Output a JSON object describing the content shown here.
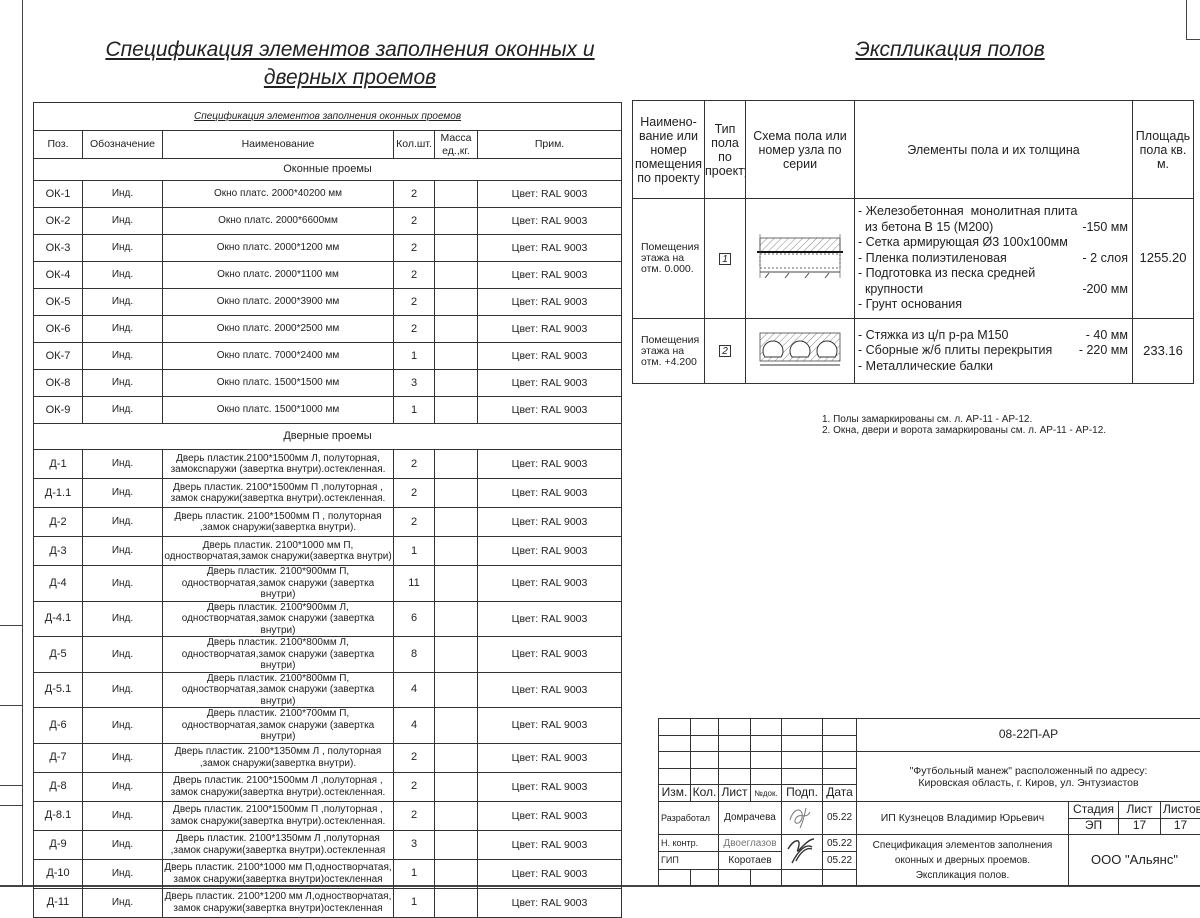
{
  "left_title": [
    "Спецификация элементов заполнения оконных и",
    "дверных проемов"
  ],
  "right_title": "Экспликация полов",
  "spec_table": {
    "caption": "Спецификация элементов заполнения оконных проемов",
    "headers": [
      "Поз.",
      "Обозначение",
      "Наименование",
      "Кол.шт.",
      "Масса ед.,кг.",
      "Прим."
    ],
    "window_section": "Оконные проемы",
    "windows": [
      [
        "ОК-1",
        "Инд.",
        "Окно платс. 2000*40200 мм",
        "2",
        "",
        "Цвет: RAL 9003"
      ],
      [
        "ОК-2",
        "Инд.",
        "Окно платс. 2000*6600мм",
        "2",
        "",
        "Цвет: RAL 9003"
      ],
      [
        "ОК-3",
        "Инд.",
        "Окно платс. 2000*1200 мм",
        "2",
        "",
        "Цвет: RAL 9003"
      ],
      [
        "ОК-4",
        "Инд.",
        "Окно платс. 2000*1100 мм",
        "2",
        "",
        "Цвет: RAL 9003"
      ],
      [
        "ОК-5",
        "Инд.",
        "Окно платс. 2000*3900 мм",
        "2",
        "",
        "Цвет: RAL 9003"
      ],
      [
        "ОК-6",
        "Инд.",
        "Окно платс. 2000*2500 мм",
        "2",
        "",
        "Цвет: RAL 9003"
      ],
      [
        "ОК-7",
        "Инд.",
        "Окно платс. 7000*2400 мм",
        "1",
        "",
        "Цвет: RAL 9003"
      ],
      [
        "ОК-8",
        "Инд.",
        "Окно платс. 1500*1500 мм",
        "3",
        "",
        "Цвет: RAL 9003"
      ],
      [
        "ОК-9",
        "Инд.",
        "Окно платс. 1500*1000 мм",
        "1",
        "",
        "Цвет: RAL 9003"
      ]
    ],
    "door_section": "Дверные проемы",
    "doors": [
      [
        "Д-1",
        "Инд.",
        "Дверь пластик.2100*1500мм Л, полуторная, замоксnаружи (завертка внутри).остекленная.",
        "2",
        "",
        "Цвет: RAL 9003"
      ],
      [
        "Д-1.1",
        "Инд.",
        "Дверь пластик. 2100*1500мм П ,полуторная , замок снаружи(завертка внутри).остекленная.",
        "2",
        "",
        "Цвет: RAL 9003"
      ],
      [
        "Д-2",
        "Инд.",
        "Дверь пластик. 2100*1500мм П , полуторная ,замок снаружи(завертка внутри).",
        "2",
        "",
        "Цвет: RAL 9003"
      ],
      [
        "Д-3",
        "Инд.",
        "Дверь пластик. 2100*1000 мм П, одностворчатая,замок снаружи(завертка внутри)",
        "1",
        "",
        "Цвет: RAL 9003"
      ],
      [
        "Д-4",
        "Инд.",
        "Дверь пластик. 2100*900мм П, одностворчатая,замок снаружи (завертка внутри)",
        "11",
        "",
        "Цвет: RAL 9003"
      ],
      [
        "Д-4.1",
        "Инд.",
        "Дверь пластик. 2100*900мм Л, одностворчатая,замок снаружи (завертка внутри)",
        "6",
        "",
        "Цвет: RAL 9003"
      ],
      [
        "Д-5",
        "Инд.",
        "Дверь пластик. 2100*800мм Л, одностворчатая,замок снаружи (завертка внутри)",
        "8",
        "",
        "Цвет: RAL 9003"
      ],
      [
        "Д-5.1",
        "Инд.",
        "Дверь пластик. 2100*800мм П, одностворчатая,замок снаружи (завертка внутри)",
        "4",
        "",
        "Цвет: RAL 9003"
      ],
      [
        "Д-6",
        "Инд.",
        "Дверь пластик. 2100*700мм П, одностворчатая,замок снаружи (завертка внутри)",
        "4",
        "",
        "Цвет: RAL 9003"
      ],
      [
        "Д-7",
        "Инд.",
        "Дверь пластик. 2100*1350мм Л , полуторная ,замок снаружи(завертка внутри).",
        "2",
        "",
        "Цвет: RAL 9003"
      ],
      [
        "Д-8",
        "Инд.",
        "Дверь пластик. 2100*1500мм Л ,полуторная , замок снаружи(завертка внутри).остекленная.",
        "2",
        "",
        "Цвет: RAL 9003"
      ],
      [
        "Д-8.1",
        "Инд.",
        "Дверь пластик. 2100*1500мм П ,полуторная , замок снаружи(завертка внутри).остекленная.",
        "2",
        "",
        "Цвет: RAL 9003"
      ],
      [
        "Д-9",
        "Инд.",
        "Дверь пластик. 2100*1350мм Л ,полуторная ,замок снаружи(завертка внутри).остекленная",
        "3",
        "",
        "Цвет: RAL 9003"
      ],
      [
        "Д-10",
        "Инд.",
        "Дверь пластик. 2100*1000 мм П,одностворчатая, замок снаружи(завертка внутри)остекленная",
        "1",
        "",
        "Цвет: RAL 9003"
      ],
      [
        "Д-11",
        "Инд.",
        "Дверь пластик. 2100*1200 мм Л,одностворчатая, замок снаружи(завертка внутри)остекленная",
        "1",
        "",
        "Цвет: RAL 9003"
      ]
    ]
  },
  "floor_table": {
    "headers": [
      "Наимено-вание или номер помещения по проекту",
      "Тип пола по проекту",
      "Схема пола или номер узла по серии",
      "Элементы пола и их толщина",
      "Площадь пола кв. м."
    ],
    "rows": [
      {
        "room": "Помещения этажа на отм. 0.000.",
        "type": "1",
        "elements": [
          [
            "- Железобетонная  монолитная плита",
            ""
          ],
          [
            "  из бетона В 15 (М200)",
            "-150 мм"
          ],
          [
            "- Сетка армирующая Ø3 100x100мм",
            ""
          ],
          [
            "- Пленка полиэтиленовая",
            "- 2 слоя"
          ],
          [
            "- Подготовка из песка средней",
            ""
          ],
          [
            "  крупности",
            "-200 мм"
          ],
          [
            "- Грунт основания",
            ""
          ]
        ],
        "area": "1255.20"
      },
      {
        "room": "Помещения этажа на отм. +4.200",
        "type": "2",
        "elements": [
          [
            "- Стяжка из ц/п р-ра М150",
            "- 40 мм"
          ],
          [
            "- Сборные ж/б плиты перекрытия",
            "- 220 мм"
          ],
          [
            "- Металлические балки",
            ""
          ]
        ],
        "area": "233.16"
      }
    ]
  },
  "notes": [
    "1. Полы замаркированы см. л. АР-11 - АР-12.",
    "2. Окна, двери и ворота замаркированы см. л.  АР-11 - АР-12."
  ],
  "stamp": {
    "code": "08-22П-АР",
    "project": [
      "\"Футбольный манеж\" расположенный по адресу:",
      "Кировская область, г. Киров, ул. Энтузиастов"
    ],
    "cols": [
      "Изм.",
      "Кол.",
      "Лист",
      "№док.",
      "Подп.",
      "Дата"
    ],
    "people": [
      {
        "role": "Разработал",
        "name": "Домрачева",
        "date": "05.22"
      },
      {
        "role": "Н. контр.",
        "name": "Двоеглазов",
        "date": "05.22"
      },
      {
        "role": "ГИП",
        "name": "Коротаев",
        "date": "05.22"
      }
    ],
    "organization_person": "ИП Кузнецов Владимир Юрьевич",
    "stage_label": "Стадия",
    "sheet_label": "Лист",
    "sheets_label": "Листов",
    "stage": "ЭП",
    "sheet": "17",
    "sheets": "17",
    "sheet_title": [
      "Спецификация элементов заполнения",
      "оконных и дверных проемов.",
      "Экспликация полов."
    ],
    "company": "ООО \"Альянс\""
  }
}
